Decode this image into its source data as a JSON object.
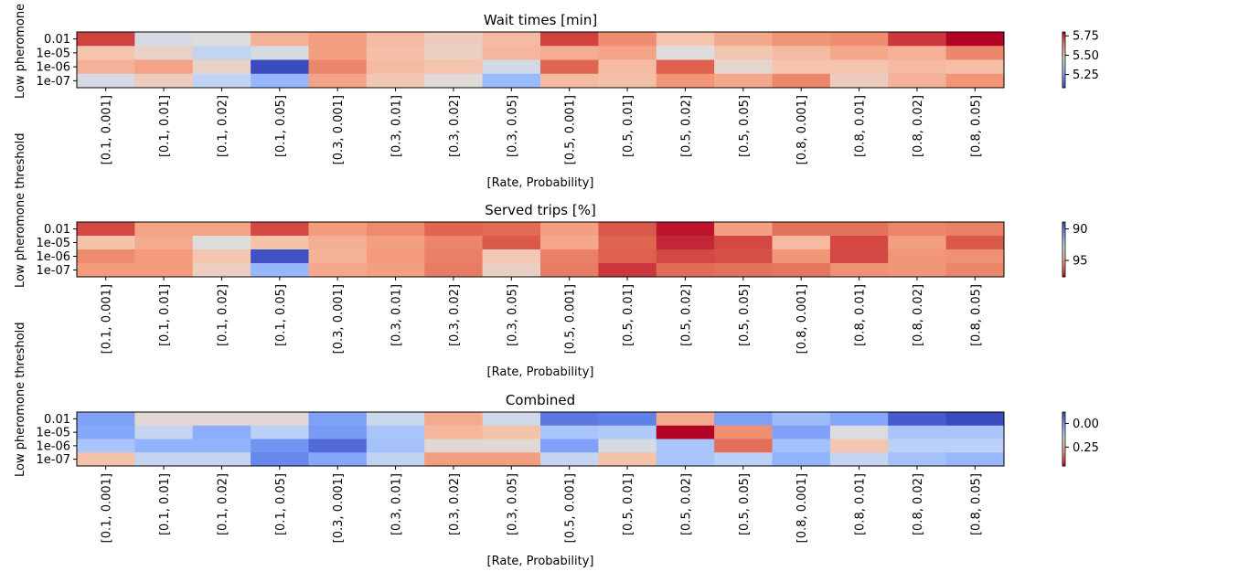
{
  "chart_data": [
    {
      "type": "heatmap",
      "title": "Wait times [min]",
      "xlabel": "[Rate, Probability]",
      "ylabel": "Low pheromone threshold",
      "x_categories": [
        "[0.1, 0.001]",
        "[0.1, 0.01]",
        "[0.1, 0.02]",
        "[0.1, 0.05]",
        "[0.3, 0.001]",
        "[0.3, 0.01]",
        "[0.3, 0.02]",
        "[0.3, 0.05]",
        "[0.5, 0.001]",
        "[0.5, 0.01]",
        "[0.5, 0.02]",
        "[0.5, 0.05]",
        "[0.8, 0.001]",
        "[0.8, 0.01]",
        "[0.8, 0.02]",
        "[0.8, 0.05]"
      ],
      "y_categories": [
        "0.01",
        "1e-05",
        "1e-06",
        "1e-07"
      ],
      "values": [
        [
          5.74,
          5.42,
          5.44,
          5.57,
          5.61,
          5.55,
          5.5,
          5.55,
          5.74,
          5.64,
          5.53,
          5.59,
          5.63,
          5.64,
          5.75,
          5.8
        ],
        [
          5.53,
          5.48,
          5.38,
          5.42,
          5.61,
          5.54,
          5.49,
          5.56,
          5.58,
          5.6,
          5.44,
          5.52,
          5.55,
          5.59,
          5.57,
          5.65
        ],
        [
          5.57,
          5.6,
          5.48,
          5.08,
          5.65,
          5.55,
          5.53,
          5.41,
          5.7,
          5.55,
          5.71,
          5.47,
          5.53,
          5.53,
          5.55,
          5.54
        ],
        [
          5.42,
          5.5,
          5.37,
          5.28,
          5.6,
          5.52,
          5.45,
          5.29,
          5.55,
          5.54,
          5.63,
          5.59,
          5.65,
          5.5,
          5.57,
          5.63
        ]
      ],
      "colorbar": {
        "cmap": "coolwarm",
        "range": [
          5.08,
          5.8
        ],
        "ticks": [
          "5.25",
          "5.50",
          "5.75"
        ],
        "tick_values": [
          5.25,
          5.5,
          5.75
        ]
      }
    },
    {
      "type": "heatmap",
      "title": "Served trips [%]",
      "xlabel": "[Rate, Probability]",
      "ylabel": "Low pheromone threshold",
      "x_categories": [
        "[0.1, 0.001]",
        "[0.1, 0.01]",
        "[0.1, 0.02]",
        "[0.1, 0.05]",
        "[0.3, 0.001]",
        "[0.3, 0.01]",
        "[0.3, 0.02]",
        "[0.3, 0.05]",
        "[0.5, 0.001]",
        "[0.5, 0.01]",
        "[0.5, 0.02]",
        "[0.5, 0.05]",
        "[0.8, 0.001]",
        "[0.8, 0.01]",
        "[0.8, 0.02]",
        "[0.8, 0.05]"
      ],
      "y_categories": [
        "0.01",
        "1e-05",
        "1e-06",
        "1e-07"
      ],
      "values": [
        [
          96.8,
          95.2,
          95.2,
          96.8,
          95.4,
          95.7,
          96.4,
          96.3,
          95.3,
          96.6,
          97.4,
          95.3,
          96.2,
          96.2,
          95.8,
          95.9
        ],
        [
          94.4,
          95.0,
          93.3,
          94.4,
          94.9,
          95.3,
          95.8,
          96.6,
          95.1,
          96.4,
          97.2,
          96.8,
          94.6,
          96.8,
          95.3,
          96.6
        ],
        [
          95.7,
          95.4,
          94.3,
          89.0,
          94.8,
          95.4,
          95.9,
          94.2,
          95.9,
          96.5,
          96.8,
          96.7,
          95.5,
          96.8,
          95.5,
          95.6
        ],
        [
          95.4,
          95.4,
          93.9,
          91.3,
          95.1,
          95.3,
          96.0,
          93.8,
          96.0,
          97.0,
          96.3,
          96.2,
          96.1,
          95.6,
          95.5,
          95.8
        ]
      ],
      "colorbar": {
        "cmap": "coolwarm",
        "range": [
          88.9,
          97.6
        ],
        "reversed": true,
        "ticks": [
          "95",
          "90"
        ],
        "tick_values": [
          95,
          90
        ]
      }
    },
    {
      "type": "heatmap",
      "title": "Combined",
      "xlabel": "[Rate, Probability]",
      "ylabel": "Low pheromone threshold",
      "x_categories": [
        "[0.1, 0.001]",
        "[0.1, 0.01]",
        "[0.1, 0.02]",
        "[0.1, 0.05]",
        "[0.3, 0.001]",
        "[0.3, 0.01]",
        "[0.3, 0.02]",
        "[0.3, 0.05]",
        "[0.5, 0.001]",
        "[0.5, 0.01]",
        "[0.5, 0.02]",
        "[0.5, 0.05]",
        "[0.8, 0.001]",
        "[0.8, 0.01]",
        "[0.8, 0.02]",
        "[0.8, 0.05]"
      ],
      "y_categories": [
        "0.01",
        "1e-05",
        "1e-06",
        "1e-07"
      ],
      "values": [
        [
          0.0,
          0.18,
          0.18,
          0.18,
          0.0,
          0.13,
          0.28,
          0.14,
          -0.06,
          -0.05,
          0.28,
          0.0,
          0.05,
          0.01,
          -0.1,
          -0.12
        ],
        [
          0.01,
          0.12,
          0.02,
          0.1,
          -0.01,
          0.07,
          0.26,
          0.24,
          0.07,
          0.08,
          0.45,
          0.32,
          0.0,
          0.16,
          0.07,
          0.07
        ],
        [
          0.07,
          0.03,
          0.03,
          -0.02,
          -0.08,
          0.06,
          0.18,
          0.18,
          0.0,
          0.15,
          0.07,
          0.36,
          0.06,
          0.23,
          0.1,
          0.1
        ],
        [
          0.24,
          0.12,
          0.12,
          -0.04,
          0.01,
          0.11,
          0.3,
          0.3,
          0.12,
          0.24,
          0.07,
          0.1,
          0.03,
          0.12,
          0.06,
          0.04
        ]
      ],
      "colorbar": {
        "cmap": "coolwarm",
        "range": [
          -0.12,
          0.45
        ],
        "reversed": true,
        "ticks": [
          "0.25",
          "0.00"
        ],
        "tick_values": [
          0.25,
          0.0
        ]
      }
    }
  ]
}
